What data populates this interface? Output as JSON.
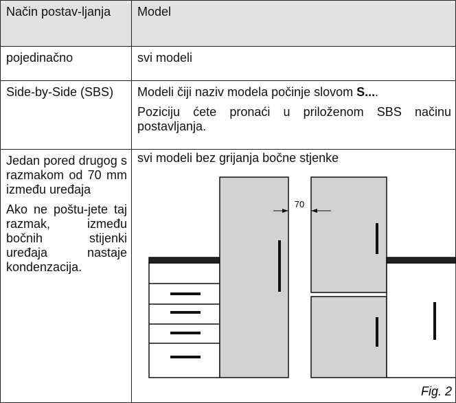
{
  "table": {
    "header": [
      "Način postav-ljanja",
      "Model"
    ],
    "rows": [
      {
        "placement": "pojedinačno",
        "model": [
          "svi modeli"
        ]
      },
      {
        "placement": "Side-by-Side (SBS)",
        "model": [
          "Modeli čiji naziv modela počinje slovom ",
          "S...",
          ".",
          "Poziciju ćete pronaći u priloženom SBS načinu postavljanja."
        ]
      },
      {
        "placement": [
          "Jedan pored drugog s razmakom od 70 mm između uređaja",
          "Ako ne poštu-jete taj razmak, između bočnih stijenki uređaja nastaje kondenzacija."
        ],
        "model": [
          "svi modeli bez grijanja bočne stjenke"
        ],
        "figure": {
          "dimension_label": "70",
          "caption": "Fig. 2"
        }
      }
    ]
  }
}
